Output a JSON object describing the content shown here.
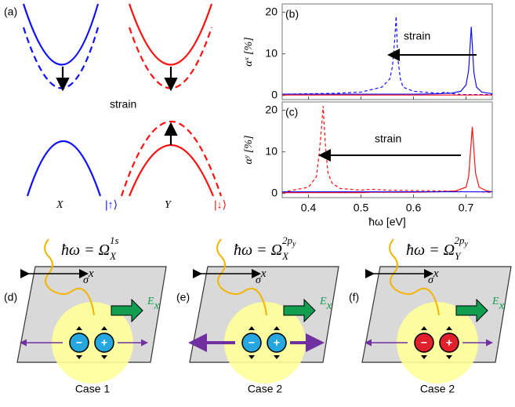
{
  "panel_a": {
    "label": "(a)",
    "strain": "strain",
    "x_label": "X",
    "x_state": "|↑⟩",
    "y_label": "Y",
    "y_state": "|↓⟩"
  },
  "chart_data": [
    {
      "type": "line",
      "panel": "(b)",
      "ylabel": "αˣ [%]",
      "annotation": "strain",
      "x": [
        0.35,
        0.4,
        0.45,
        0.5,
        0.54,
        0.555,
        0.56,
        0.564,
        0.567,
        0.57,
        0.575,
        0.58,
        0.6,
        0.65,
        0.66,
        0.67,
        0.69,
        0.7,
        0.705,
        0.71,
        0.715,
        0.72,
        0.73,
        0.75
      ],
      "xlim": [
        0.35,
        0.75
      ],
      "xticks": [
        0.4,
        0.5,
        0.6,
        0.7
      ],
      "ylim": [
        -1,
        22
      ],
      "yticks": [
        0,
        10,
        20
      ],
      "series": [
        {
          "color": "#1010ff",
          "dashed": false,
          "values": [
            0.3,
            0.3,
            0.3,
            0.3,
            0.3,
            0.3,
            0.3,
            0.3,
            0.3,
            0.3,
            0.3,
            0.3,
            0.3,
            0.4,
            0.5,
            0.5,
            1,
            2.5,
            6,
            16.5,
            5.5,
            2,
            0.8,
            0.4
          ]
        },
        {
          "color": "#1010ff",
          "dashed": true,
          "values": [
            0.3,
            0.4,
            0.5,
            0.8,
            2,
            4,
            7,
            13,
            19,
            9,
            4,
            2,
            1,
            0.5,
            0.8,
            0.5,
            0.2,
            0.2,
            0.2,
            0.2,
            0.2,
            0.2,
            0.2,
            0.2
          ]
        },
        {
          "color": "#ff1010",
          "dashed": false,
          "values": [
            0.1,
            0.1,
            0.1,
            0.1,
            0.1,
            0.1,
            0.1,
            0.1,
            0.1,
            0.1,
            0.1,
            0.1,
            0.1,
            0.1,
            0.1,
            0.1,
            0.1,
            0.1,
            0.1,
            0.1,
            0.1,
            0.1,
            0.1,
            0.1
          ]
        }
      ]
    },
    {
      "type": "line",
      "panel": "(c)",
      "ylabel": "αʸ [%]",
      "xlabel": "ħω [eV]",
      "annotation": "strain",
      "x": [
        0.35,
        0.4,
        0.415,
        0.42,
        0.425,
        0.428,
        0.432,
        0.437,
        0.445,
        0.46,
        0.5,
        0.52,
        0.55,
        0.6,
        0.65,
        0.68,
        0.7,
        0.705,
        0.712,
        0.718,
        0.725,
        0.74,
        0.75
      ],
      "xlim": [
        0.35,
        0.75
      ],
      "xticks": [
        0.4,
        0.5,
        0.6,
        0.7
      ],
      "ylim": [
        -1,
        22
      ],
      "yticks": [
        0,
        10,
        20
      ],
      "series": [
        {
          "color": "#ff1010",
          "dashed": false,
          "values": [
            0.2,
            0.2,
            0.2,
            0.2,
            0.2,
            0.2,
            0.2,
            0.2,
            0.2,
            0.2,
            0.2,
            0.3,
            0.3,
            0.3,
            0.4,
            0.6,
            1.5,
            4,
            16,
            5,
            1.5,
            0.6,
            0.4
          ]
        },
        {
          "color": "#ff1010",
          "dashed": true,
          "values": [
            0.3,
            1.5,
            4,
            9,
            16,
            21,
            12,
            5,
            2.5,
            1.2,
            0.8,
            1,
            0.8,
            0.7,
            0.6,
            0.5,
            0.4,
            0.4,
            0.4,
            0.4,
            0.4,
            0.3,
            0.3
          ]
        },
        {
          "color": "#1010ff",
          "dashed": false,
          "values": [
            0.4,
            0.4,
            0.4,
            0.4,
            0.4,
            0.4,
            0.4,
            0.4,
            0.4,
            0.4,
            0.4,
            0.4,
            0.4,
            0.4,
            0.4,
            0.4,
            0.4,
            0.4,
            0.4,
            0.4,
            0.4,
            0.4,
            0.4
          ]
        }
      ]
    }
  ],
  "schematics": [
    {
      "label": "(d)",
      "omega": "ħω = Ω",
      "omega_sub": "X",
      "omega_sup": "1s",
      "omega_sup_sub": "",
      "sigma": "σ",
      "sigma_sup": "x",
      "field": "E",
      "field_sub": "x",
      "charges": [
        "−",
        "+"
      ],
      "charge_color": "#27a7df",
      "caption": "Case 1"
    },
    {
      "label": "(e)",
      "omega": "ħω = Ω",
      "omega_sub": "X",
      "omega_sup": "2p",
      "omega_sup_sub": "y",
      "sigma": "σ",
      "sigma_sup": "x",
      "field": "E",
      "field_sub": "x",
      "charges": [
        "−",
        "+"
      ],
      "charge_color": "#27a7df",
      "caption": "Case 2"
    },
    {
      "label": "(f)",
      "omega": "ħω = Ω",
      "omega_sub": "Y",
      "omega_sup": "2p",
      "omega_sup_sub": "y",
      "sigma": "σ",
      "sigma_sup": "x",
      "field": "E",
      "field_sub": "x",
      "charges": [
        "−",
        "+"
      ],
      "charge_color": "#e0202a",
      "caption": "Case 2"
    }
  ]
}
